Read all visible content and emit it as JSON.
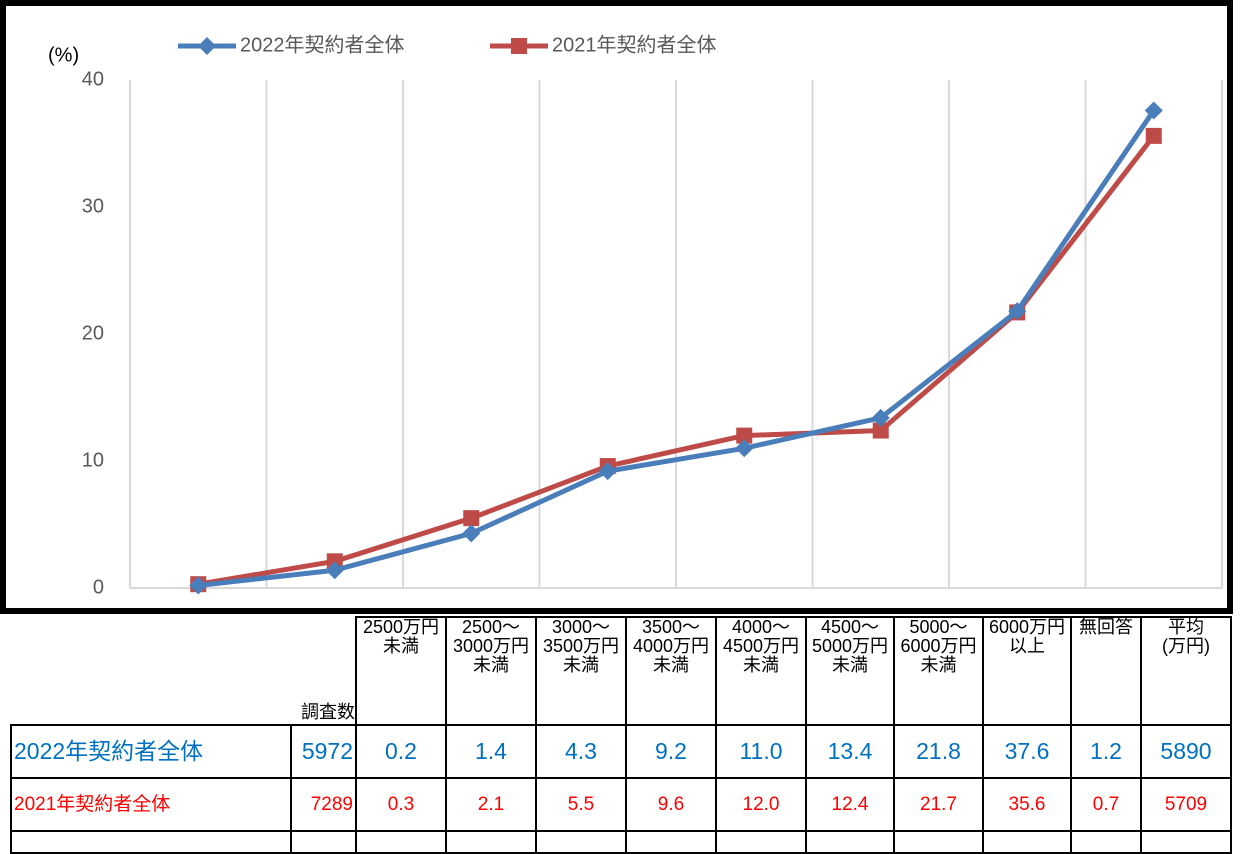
{
  "chart_data": {
    "type": "line",
    "y_label": "(%)",
    "categories": [
      null,
      null,
      null,
      null,
      null,
      null,
      null,
      null
    ],
    "series": [
      {
        "name": "2022年契約者全体",
        "color": "#4a7ebb",
        "marker": "diamond",
        "values": [
          0.2,
          1.4,
          4.3,
          9.2,
          11.0,
          13.4,
          21.8,
          37.6
        ]
      },
      {
        "name": "2021年契約者全体",
        "color": "#be4b48",
        "marker": "square",
        "values": [
          0.3,
          2.1,
          5.5,
          9.6,
          12.0,
          12.4,
          21.7,
          35.6
        ]
      }
    ],
    "ylim": [
      0,
      40
    ],
    "yticks": [
      0,
      10,
      20,
      30,
      40
    ],
    "grid": "vertical",
    "legend": "top"
  },
  "table": {
    "header": [
      "調査数",
      "2500万円\n未満",
      "2500～\n3000万円\n未満",
      "3000～\n3500万円\n未満",
      "3500～\n4000万円\n未満",
      "4000～\n4500万円\n未満",
      "4500～\n5000万円\n未満",
      "5000～\n6000万円\n未満",
      "6000万円\n以上",
      "無回答",
      "平均\n(万円)"
    ],
    "rows": [
      {
        "label": "2022年契約者全体",
        "cells": [
          "5972",
          "0.2",
          "1.4",
          "4.3",
          "9.2",
          "11.0",
          "13.4",
          "21.8",
          "37.6",
          "1.2",
          "5890"
        ]
      },
      {
        "label": "2021年契約者全体",
        "cells": [
          "7289",
          "0.3",
          "2.1",
          "5.5",
          "9.6",
          "12.0",
          "12.4",
          "21.7",
          "35.6",
          "0.7",
          "5709"
        ]
      }
    ]
  }
}
